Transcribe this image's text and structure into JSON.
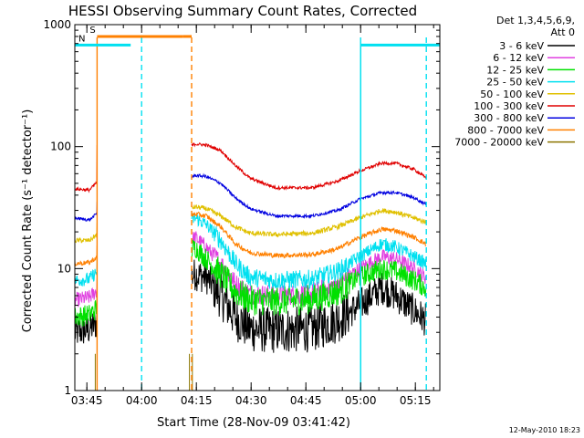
{
  "chart_data": {
    "type": "line",
    "title": "HESSI Observing Summary Count Rates, Corrected",
    "xlabel": "Start Time (28-Nov-09 03:41:42)",
    "ylabel": "Corrected Count Rate (s⁻¹ detector⁻¹)",
    "yscale": "log",
    "ylim": [
      1,
      1000
    ],
    "xlim_minutes": [
      0,
      100
    ],
    "x_ticks": [
      {
        "label": "03:45",
        "t": 3.3
      },
      {
        "label": "04:00",
        "t": 18.3
      },
      {
        "label": "04:15",
        "t": 33.3
      },
      {
        "label": "04:30",
        "t": 48.3
      },
      {
        "label": "04:45",
        "t": 63.3
      },
      {
        "label": "05:00",
        "t": 78.3
      },
      {
        "label": "05:15",
        "t": 93.3
      }
    ],
    "y_ticks": [
      {
        "label": "1",
        "v": 1
      },
      {
        "label": "10",
        "v": 10
      },
      {
        "label": "100",
        "v": 100
      },
      {
        "label": "1000",
        "v": 1000
      }
    ],
    "legend": {
      "header_line1": "Det 1,3,4,5,6,9,",
      "header_line2": "Att 0",
      "placement": "right"
    },
    "series": [
      {
        "name": "3 - 6 keV",
        "color": "#000000",
        "points": [
          [
            0,
            3
          ],
          [
            4,
            3.2
          ],
          [
            7,
            3.8
          ],
          [
            33,
            9
          ],
          [
            36,
            8.5
          ],
          [
            40,
            6
          ],
          [
            44,
            4
          ],
          [
            48,
            3.2
          ],
          [
            55,
            3.1
          ],
          [
            65,
            3.2
          ],
          [
            72,
            3.8
          ],
          [
            78,
            5
          ],
          [
            84,
            7
          ],
          [
            88,
            6
          ],
          [
            93,
            4.5
          ],
          [
            96,
            3.8
          ]
        ]
      },
      {
        "name": "6 - 12 keV",
        "color": "#e040e0",
        "points": [
          [
            0,
            5.5
          ],
          [
            4,
            5.8
          ],
          [
            7,
            7
          ],
          [
            33,
            18
          ],
          [
            36,
            15
          ],
          [
            40,
            11
          ],
          [
            44,
            7.5
          ],
          [
            48,
            6.2
          ],
          [
            55,
            6
          ],
          [
            65,
            6.2
          ],
          [
            72,
            7.5
          ],
          [
            78,
            10
          ],
          [
            84,
            12.5
          ],
          [
            88,
            12
          ],
          [
            93,
            10
          ],
          [
            96,
            8.5
          ]
        ]
      },
      {
        "name": "12 - 25 keV",
        "color": "#00e000",
        "points": [
          [
            0,
            4
          ],
          [
            4,
            4.2
          ],
          [
            7,
            5
          ],
          [
            33,
            15
          ],
          [
            36,
            12
          ],
          [
            40,
            9
          ],
          [
            44,
            6.5
          ],
          [
            48,
            5.5
          ],
          [
            55,
            5.4
          ],
          [
            65,
            5.6
          ],
          [
            72,
            6.5
          ],
          [
            78,
            8.5
          ],
          [
            84,
            10
          ],
          [
            88,
            9.5
          ],
          [
            93,
            8
          ],
          [
            96,
            7
          ]
        ]
      },
      {
        "name": "25 - 50 keV",
        "color": "#00e0f0",
        "points": [
          [
            0,
            8
          ],
          [
            4,
            8.2
          ],
          [
            7,
            10
          ],
          [
            33,
            26
          ],
          [
            36,
            23
          ],
          [
            40,
            17
          ],
          [
            44,
            11
          ],
          [
            48,
            8.5
          ],
          [
            55,
            8
          ],
          [
            65,
            8.2
          ],
          [
            72,
            9.5
          ],
          [
            78,
            12.5
          ],
          [
            84,
            16
          ],
          [
            88,
            15
          ],
          [
            93,
            12.5
          ],
          [
            96,
            11
          ]
        ]
      },
      {
        "name": "50 - 100 keV",
        "color": "#e0c000",
        "points": [
          [
            0,
            17
          ],
          [
            4,
            17
          ],
          [
            7,
            20
          ],
          [
            33,
            32
          ],
          [
            36,
            31
          ],
          [
            40,
            27
          ],
          [
            44,
            22
          ],
          [
            48,
            19.5
          ],
          [
            55,
            19
          ],
          [
            65,
            19.5
          ],
          [
            72,
            22
          ],
          [
            78,
            26
          ],
          [
            84,
            30
          ],
          [
            88,
            29
          ],
          [
            93,
            26
          ],
          [
            96,
            24
          ]
        ]
      },
      {
        "name": "100 - 300 keV",
        "color": "#e00000",
        "points": [
          [
            0,
            45
          ],
          [
            4,
            44
          ],
          [
            7,
            55
          ],
          [
            33,
            105
          ],
          [
            36,
            103
          ],
          [
            40,
            93
          ],
          [
            44,
            70
          ],
          [
            48,
            55
          ],
          [
            55,
            46
          ],
          [
            65,
            46
          ],
          [
            72,
            52
          ],
          [
            78,
            63
          ],
          [
            84,
            73
          ],
          [
            88,
            73
          ],
          [
            93,
            65
          ],
          [
            96,
            56
          ]
        ]
      },
      {
        "name": "300 - 800 keV",
        "color": "#0000e0",
        "points": [
          [
            0,
            26
          ],
          [
            4,
            25
          ],
          [
            7,
            30
          ],
          [
            33,
            58
          ],
          [
            36,
            57
          ],
          [
            40,
            50
          ],
          [
            44,
            38
          ],
          [
            48,
            31
          ],
          [
            55,
            27
          ],
          [
            65,
            27
          ],
          [
            72,
            30
          ],
          [
            78,
            37
          ],
          [
            84,
            42
          ],
          [
            88,
            42
          ],
          [
            93,
            38
          ],
          [
            96,
            34
          ]
        ]
      },
      {
        "name": "800 - 7000 keV",
        "color": "#ff8000",
        "points": [
          [
            0,
            11
          ],
          [
            4,
            11.2
          ],
          [
            7,
            13
          ],
          [
            33,
            28
          ],
          [
            36,
            27
          ],
          [
            40,
            22
          ],
          [
            44,
            16
          ],
          [
            48,
            13.5
          ],
          [
            55,
            12.8
          ],
          [
            65,
            13
          ],
          [
            72,
            14.5
          ],
          [
            78,
            18
          ],
          [
            84,
            21
          ],
          [
            88,
            20.5
          ],
          [
            93,
            18
          ],
          [
            96,
            16
          ]
        ]
      },
      {
        "name": "7000 - 20000 keV",
        "color": "#8b7500",
        "points": [
          [
            5.6,
            2
          ],
          [
            5.6,
            1
          ],
          [
            31.4,
            2
          ],
          [
            31.4,
            1
          ],
          [
            32.2,
            2
          ],
          [
            32.2,
            1
          ]
        ]
      }
    ],
    "segments": [
      [
        0,
        6.1
      ],
      [
        32.0,
        96.3
      ]
    ],
    "flags": [
      {
        "label": "S",
        "color": "#ff8000",
        "y": 800,
        "from": 6.1,
        "to": 29.6,
        "line_end": 32.0
      },
      {
        "label": "N",
        "color": "#00e0f0",
        "y": 680,
        "from": 0,
        "to": 15.3
      }
    ],
    "flag_bar_cyan_right": {
      "y": 680,
      "from": 78.3,
      "to": 100
    },
    "flag_lines": [
      {
        "t": 6.1,
        "color": "#ff8000",
        "dashed": false
      },
      {
        "t": 18.3,
        "color": "#00e0f0",
        "dashed": true
      },
      {
        "t": 32.0,
        "color": "#ff8000",
        "dashed": true
      },
      {
        "t": 78.3,
        "color": "#00e0f0",
        "dashed": false
      },
      {
        "t": 96.3,
        "color": "#00e0f0",
        "dashed": true
      }
    ],
    "footer_date": "12-May-2010 18:23"
  }
}
